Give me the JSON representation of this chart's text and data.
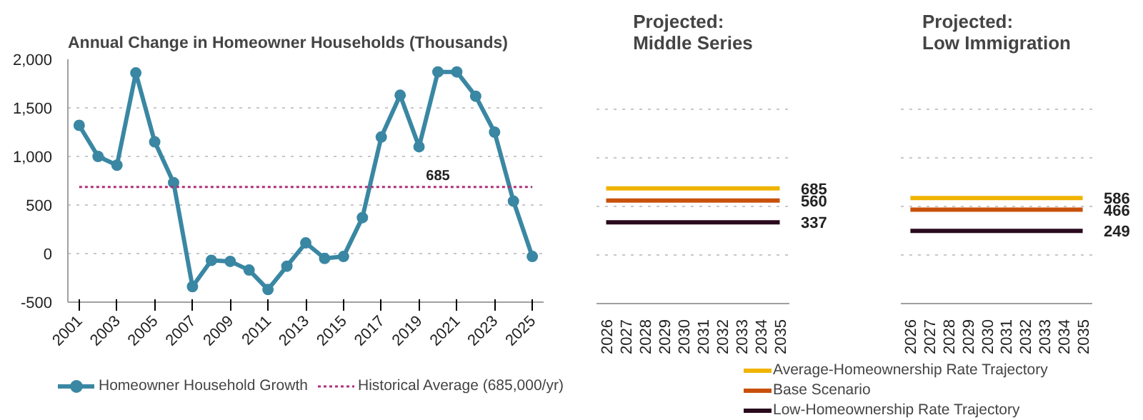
{
  "chart_data": [
    {
      "type": "line",
      "title": "Annual Change in Homeowner Households (Thousands)",
      "x": [
        2001,
        2002,
        2003,
        2004,
        2005,
        2006,
        2007,
        2008,
        2009,
        2010,
        2011,
        2012,
        2013,
        2014,
        2015,
        2016,
        2017,
        2018,
        2019,
        2020,
        2021,
        2022,
        2023,
        2024,
        2025
      ],
      "series": [
        {
          "name": "Homeowner Household Growth",
          "color": "#3a87a3",
          "marker": "circle",
          "line_style": "solid",
          "values": [
            1320,
            1000,
            910,
            1860,
            1150,
            730,
            -340,
            -70,
            -80,
            -170,
            -370,
            -130,
            110,
            -50,
            -30,
            370,
            1200,
            1630,
            1100,
            1870,
            1870,
            1620,
            1250,
            540,
            -30
          ]
        },
        {
          "name": "Historical Average (685,000/yr)",
          "color": "#b0307a",
          "marker": "none",
          "line_style": "dotted",
          "values": [
            685,
            685,
            685,
            685,
            685,
            685,
            685,
            685,
            685,
            685,
            685,
            685,
            685,
            685,
            685,
            685,
            685,
            685,
            685,
            685,
            685,
            685,
            685,
            685,
            685
          ]
        }
      ],
      "annotations": [
        {
          "text": "685",
          "x": 2020,
          "y": 685
        }
      ],
      "xlim": [
        2000.4,
        2025.6
      ],
      "xticks": [
        2001,
        2003,
        2005,
        2007,
        2009,
        2011,
        2013,
        2015,
        2017,
        2019,
        2021,
        2023,
        2025
      ],
      "ylim": [
        -500,
        2000
      ],
      "yticks": [
        {
          "value": -500,
          "label": "-500"
        },
        0,
        500,
        {
          "value": 1000,
          "label": "1,000"
        },
        {
          "value": 1500,
          "label": "1,500"
        },
        {
          "value": 2000,
          "label": "2,000"
        }
      ],
      "grid": "y",
      "legend": "bottom"
    },
    {
      "type": "line",
      "title": "Projected:\nMiddle Series",
      "categories": [
        "2026",
        "2027",
        "2028",
        "2029",
        "2030",
        "2031",
        "2032",
        "2033",
        "2034",
        "2035"
      ],
      "series": [
        {
          "color": "#f0b400",
          "values": [
            685,
            685,
            685,
            685,
            685,
            685,
            685,
            685,
            685,
            685
          ],
          "value_labels": [
            null,
            null,
            null,
            null,
            null,
            null,
            null,
            null,
            null,
            "685"
          ]
        },
        {
          "color": "#c8500a",
          "values": [
            560,
            560,
            560,
            560,
            560,
            560,
            560,
            560,
            560,
            560
          ],
          "value_labels": [
            null,
            null,
            null,
            null,
            null,
            null,
            null,
            null,
            null,
            "560"
          ]
        },
        {
          "color": "#2a0a1e",
          "values": [
            337,
            337,
            337,
            337,
            337,
            337,
            337,
            337,
            337,
            337
          ],
          "value_labels": [
            null,
            null,
            null,
            null,
            null,
            null,
            null,
            null,
            null,
            "337"
          ]
        }
      ],
      "ylim": [
        -500,
        2000
      ],
      "yticks": [
        -500,
        0,
        500,
        1000,
        1500,
        2000
      ],
      "grid": "y",
      "tick_labels": "x"
    },
    {
      "type": "line",
      "title": "Projected:\nLow Immigration",
      "categories": [
        "2026",
        "2027",
        "2028",
        "2029",
        "2030",
        "2031",
        "2032",
        "2033",
        "2034",
        "2035"
      ],
      "series": [
        {
          "name": "Average-Homeownership Rate Trajectory",
          "color": "#f0b400",
          "values": [
            586,
            586,
            586,
            586,
            586,
            586,
            586,
            586,
            586,
            586
          ],
          "value_labels": [
            null,
            null,
            null,
            null,
            null,
            null,
            null,
            null,
            null,
            "586"
          ]
        },
        {
          "name": "Base Scenario",
          "color": "#c8500a",
          "values": [
            466,
            466,
            466,
            466,
            466,
            466,
            466,
            466,
            466,
            466
          ],
          "value_labels": [
            null,
            null,
            null,
            null,
            null,
            null,
            null,
            null,
            null,
            "466"
          ]
        },
        {
          "name": "Low-Homeownership Rate Trajectory",
          "color": "#2a0a1e",
          "values": [
            249,
            249,
            249,
            249,
            249,
            249,
            249,
            249,
            249,
            249
          ],
          "value_labels": [
            null,
            null,
            null,
            null,
            null,
            null,
            null,
            null,
            null,
            "249"
          ]
        }
      ],
      "ylim": [
        -500,
        2000
      ],
      "yticks": [
        -500,
        0,
        500,
        1000,
        1500,
        2000
      ],
      "grid": "y",
      "tick_labels": "x",
      "legend": "bottom"
    }
  ]
}
